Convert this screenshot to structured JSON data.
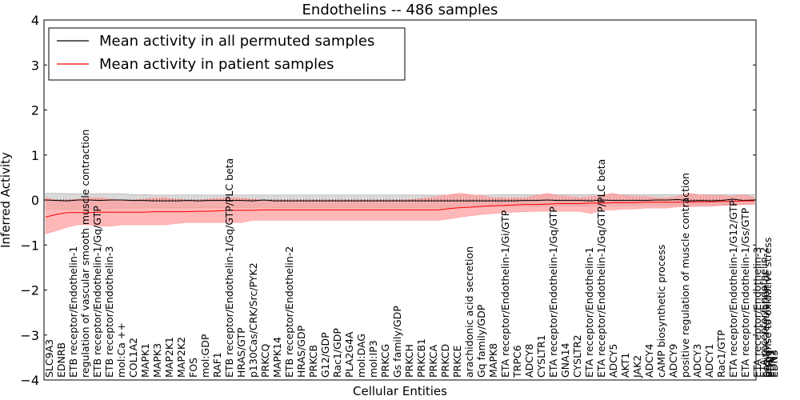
{
  "chart_data": {
    "type": "line",
    "title": "Endothelins -- 486 samples",
    "xlabel": "Cellular Entities",
    "ylabel": "Inferred Activity",
    "ylim": [
      -4,
      4
    ],
    "yticks": [
      -4,
      -3,
      -2,
      -1,
      0,
      1,
      2,
      3,
      4
    ],
    "grid": false,
    "legend_position": "top-left",
    "x_labels": [
      "SLC9A3",
      "EDNRB",
      "ETB receptor/Endothelin-1",
      "regulation of vascular smooth muscle contraction",
      "ETB receptor/Endothelin-1/Gq/GTP",
      "ETB receptor/Endothelin-3",
      "mol:Ca ++",
      "COL1A2",
      "MAPK1",
      "MAPK3",
      "MAP2K1",
      "MAP2K2",
      "FOS",
      "mol:GDP",
      "RAF1",
      "ETB receptor/Endothelin-1/Gq/GTP/PLC beta",
      "HRAS/GTP",
      "p130Cas/CRK/Src/PYK2",
      "PRKCQ",
      "MAPK14",
      "ETB receptor/Endothelin-2",
      "HRAS/GDP",
      "PRKCB",
      "G12/GDP",
      "Rac1/GDP",
      "PLA2G4A",
      "mol:DAG",
      "mol:IP3",
      "PRKCG",
      "Gs family/GDP",
      "PRKCH",
      "PRKCB1",
      "PRKCA",
      "PRKCD",
      "PRKCE",
      "arachidonic acid secretion",
      "Gq family/GDP",
      "MAPK8",
      "ETA receptor/Endothelin-1/Gi/GTP",
      "TRPC6",
      "ADCY8",
      "CYSLTR1",
      "ETA receptor/Endothelin-1/Gq/GTP",
      "GNA14",
      "CYSLTR2",
      "ETA receptor/Endothelin-1",
      "ETA receptor/Endothelin-1/Gq/GTP/PLC beta",
      "ADCY5",
      "AKT1",
      "JAK2",
      "ADCY4",
      "cAMP biosynthetic process",
      "ADCY9",
      "positive regulation of muscle contraction",
      "ADCY3",
      "ADCY1",
      "Rac1/GTP",
      "ETA receptor/Endothelin-1/G12/GTP",
      "ETA receptor/Endothelin-1/Gs/GTP",
      "ETA receptor/Endothelin-3",
      "ETA receptor/Endothelin-2",
      "positive regulation of",
      "response to oxidative stress",
      "EDN1",
      "EDN2",
      "EDN3"
    ],
    "series": [
      {
        "name": "Mean activity in all permuted samples",
        "color": "#000000",
        "band_color": "#aaaaaa",
        "values": [
          0.0,
          -0.01,
          -0.02,
          0.0,
          0.0,
          -0.01,
          0.0,
          0.0,
          -0.01,
          -0.01,
          -0.02,
          -0.02,
          -0.02,
          -0.01,
          -0.02,
          -0.01,
          -0.01,
          -0.01,
          -0.01,
          -0.02,
          0.0,
          -0.02,
          -0.02,
          -0.02,
          -0.02,
          -0.02,
          -0.02,
          -0.02,
          -0.02,
          -0.02,
          -0.02,
          -0.02,
          -0.02,
          -0.02,
          -0.02,
          -0.02,
          -0.02,
          -0.02,
          -0.02,
          -0.02,
          -0.02,
          -0.02,
          -0.02,
          -0.02,
          -0.01,
          -0.01,
          0.0,
          -0.01,
          -0.01,
          -0.01,
          -0.02,
          0.0,
          -0.01,
          -0.01,
          -0.01,
          -0.01,
          0.0,
          0.0,
          0.01,
          -0.02,
          -0.01,
          -0.02,
          -0.01,
          0.02,
          -0.01,
          0.0
        ],
        "lower": [
          -0.19,
          -0.2,
          -0.21,
          -0.2,
          -0.2,
          -0.2,
          -0.18,
          -0.18,
          -0.18,
          -0.18,
          -0.17,
          -0.17,
          -0.17,
          -0.17,
          -0.17,
          -0.17,
          -0.17,
          -0.17,
          -0.17,
          -0.17,
          -0.16,
          -0.17,
          -0.17,
          -0.17,
          -0.17,
          -0.17,
          -0.17,
          -0.17,
          -0.17,
          -0.17,
          -0.17,
          -0.17,
          -0.17,
          -0.17,
          -0.17,
          -0.17,
          -0.17,
          -0.17,
          -0.16,
          -0.16,
          -0.16,
          -0.15,
          -0.15,
          -0.14,
          -0.14,
          -0.14,
          -0.13,
          -0.13,
          -0.13,
          -0.13,
          -0.13,
          -0.13,
          -0.13,
          -0.13,
          -0.13,
          -0.12,
          -0.12,
          -0.12,
          -0.11,
          -0.11,
          -0.11,
          -0.11,
          -0.1,
          -0.1,
          -0.1,
          -0.1
        ],
        "upper": [
          0.15,
          0.15,
          0.14,
          0.14,
          0.14,
          0.14,
          0.14,
          0.14,
          0.12,
          0.12,
          0.11,
          0.11,
          0.11,
          0.11,
          0.11,
          0.11,
          0.11,
          0.11,
          0.11,
          0.11,
          0.11,
          0.11,
          0.11,
          0.11,
          0.11,
          0.11,
          0.11,
          0.11,
          0.11,
          0.11,
          0.11,
          0.11,
          0.11,
          0.11,
          0.11,
          0.11,
          0.11,
          0.11,
          0.11,
          0.11,
          0.11,
          0.11,
          0.12,
          0.12,
          0.12,
          0.12,
          0.12,
          0.12,
          0.12,
          0.12,
          0.12,
          0.12,
          0.12,
          0.12,
          0.12,
          0.12,
          0.12,
          0.12,
          0.12,
          0.12,
          0.12,
          0.12,
          0.12,
          0.12,
          0.12,
          0.12
        ]
      },
      {
        "name": "Mean activity in patient samples",
        "color": "#ff0000",
        "band_color": "#ff9a9a",
        "values": [
          -0.38,
          -0.32,
          -0.28,
          -0.28,
          -0.28,
          -0.27,
          -0.27,
          -0.27,
          -0.27,
          -0.27,
          -0.26,
          -0.26,
          -0.26,
          -0.26,
          -0.25,
          -0.25,
          -0.24,
          -0.23,
          -0.23,
          -0.23,
          -0.22,
          -0.22,
          -0.22,
          -0.22,
          -0.22,
          -0.22,
          -0.22,
          -0.22,
          -0.22,
          -0.22,
          -0.22,
          -0.22,
          -0.22,
          -0.22,
          -0.22,
          -0.22,
          -0.22,
          -0.19,
          -0.17,
          -0.16,
          -0.14,
          -0.13,
          -0.12,
          -0.11,
          -0.1,
          -0.1,
          -0.09,
          -0.08,
          -0.08,
          -0.08,
          -0.07,
          -0.07,
          -0.06,
          -0.06,
          -0.06,
          -0.05,
          -0.05,
          -0.05,
          -0.05,
          -0.05,
          -0.04,
          -0.04,
          -0.03,
          -0.03,
          -0.02,
          -0.02
        ],
        "lower": [
          -0.75,
          -0.68,
          -0.6,
          -0.55,
          -0.55,
          -0.58,
          -0.58,
          -0.55,
          -0.55,
          -0.55,
          -0.55,
          -0.55,
          -0.52,
          -0.5,
          -0.5,
          -0.5,
          -0.5,
          -0.5,
          -0.5,
          -0.45,
          -0.45,
          -0.45,
          -0.45,
          -0.45,
          -0.45,
          -0.45,
          -0.45,
          -0.45,
          -0.45,
          -0.45,
          -0.45,
          -0.45,
          -0.45,
          -0.45,
          -0.45,
          -0.45,
          -0.45,
          -0.42,
          -0.38,
          -0.35,
          -0.32,
          -0.3,
          -0.28,
          -0.27,
          -0.26,
          -0.25,
          -0.25,
          -0.25,
          -0.25,
          -0.25,
          -0.3,
          -0.22,
          -0.22,
          -0.2,
          -0.2,
          -0.18,
          -0.18,
          -0.18,
          -0.15,
          -0.15,
          -0.14,
          -0.14,
          -0.12,
          -0.12,
          -0.1,
          -0.1
        ],
        "upper": [
          0.05,
          0.0,
          0.0,
          0.02,
          0.05,
          0.05,
          0.02,
          0.0,
          0.0,
          0.02,
          0.05,
          0.05,
          0.02,
          0.0,
          0.0,
          0.02,
          0.04,
          0.05,
          0.04,
          0.02,
          0.0,
          0.0,
          0.0,
          0.0,
          0.0,
          0.0,
          0.0,
          0.0,
          0.0,
          0.0,
          0.0,
          0.0,
          0.0,
          0.0,
          0.02,
          0.05,
          0.08,
          0.12,
          0.15,
          0.12,
          0.1,
          0.05,
          0.05,
          0.05,
          0.05,
          0.1,
          0.15,
          0.1,
          0.08,
          0.05,
          0.08,
          0.1,
          0.15,
          0.1,
          0.08,
          0.08,
          0.05,
          0.05,
          0.08,
          0.15,
          0.12,
          0.1,
          0.1,
          0.08,
          0.12,
          0.05
        ]
      }
    ]
  }
}
